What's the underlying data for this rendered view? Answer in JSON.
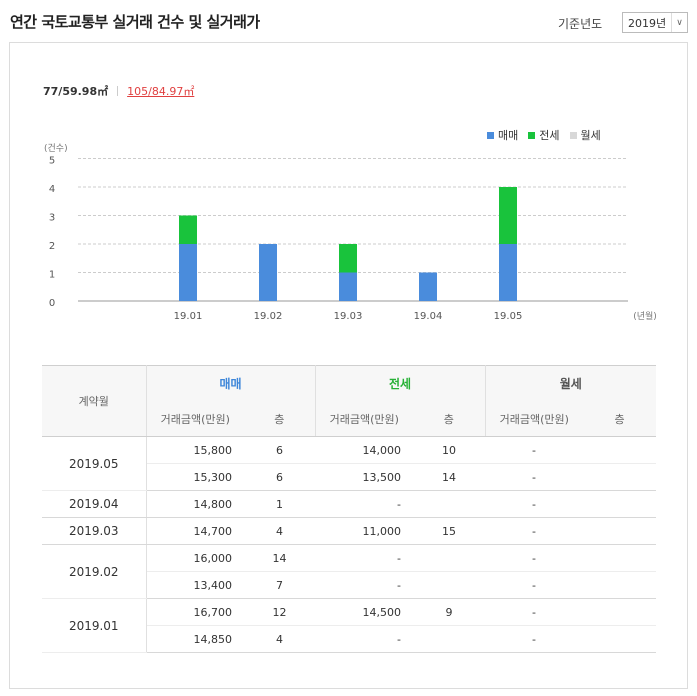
{
  "header": {
    "title": "연간 국토교통부 실거래 건수 및 실거래가",
    "year_label": "기준년도",
    "year_value": "2019년",
    "year_arrow": "∨"
  },
  "area_tabs": {
    "tab1": "77/59.98㎡",
    "tab2": "105/84.97㎡"
  },
  "legend": {
    "sale": "매매",
    "jeonse": "전세",
    "wolse": "월세"
  },
  "colors": {
    "sale": "#4a8cdc",
    "jeonse": "#19c33c",
    "wolse": "#d8d8d8",
    "grid": "#cccccc"
  },
  "chart_data": {
    "type": "bar",
    "stacked": true,
    "categories": [
      "19.01",
      "19.02",
      "19.03",
      "19.04",
      "19.05"
    ],
    "series": [
      {
        "name": "매매",
        "values": [
          2,
          2,
          1,
          1,
          2
        ]
      },
      {
        "name": "전세",
        "values": [
          1,
          0,
          1,
          0,
          2
        ]
      },
      {
        "name": "월세",
        "values": [
          0,
          0,
          0,
          0,
          0
        ]
      }
    ],
    "ylabel": "(건수)",
    "xlabel": "(년월)",
    "yticks": [
      "0",
      "1",
      "2",
      "3",
      "4",
      "5"
    ],
    "ylim": [
      0,
      5
    ],
    "grid": true,
    "legend_position": "top-right"
  },
  "table": {
    "month_header": "계약월",
    "groups": [
      "매매",
      "전세",
      "월세"
    ],
    "sub_price": "거래금액(만원)",
    "sub_floor": "층",
    "rows": [
      {
        "month": "2019.05",
        "sale_price": "15,800",
        "sale_floor": "6",
        "jeonse_price": "14,000",
        "jeonse_floor": "10",
        "wolse": "-"
      },
      {
        "month": "",
        "sale_price": "15,300",
        "sale_floor": "6",
        "jeonse_price": "13,500",
        "jeonse_floor": "14",
        "wolse": "-"
      },
      {
        "month": "2019.04",
        "sale_price": "14,800",
        "sale_floor": "1",
        "jeonse_price": "-",
        "jeonse_floor": "",
        "wolse": "-"
      },
      {
        "month": "2019.03",
        "sale_price": "14,700",
        "sale_floor": "4",
        "jeonse_price": "11,000",
        "jeonse_floor": "15",
        "wolse": "-"
      },
      {
        "month": "2019.02",
        "sale_price": "16,000",
        "sale_floor": "14",
        "jeonse_price": "-",
        "jeonse_floor": "",
        "wolse": "-"
      },
      {
        "month": "",
        "sale_price": "13,400",
        "sale_floor": "7",
        "jeonse_price": "-",
        "jeonse_floor": "",
        "wolse": "-"
      },
      {
        "month": "2019.01",
        "sale_price": "16,700",
        "sale_floor": "12",
        "jeonse_price": "14,500",
        "jeonse_floor": "9",
        "wolse": "-"
      },
      {
        "month": "",
        "sale_price": "14,850",
        "sale_floor": "4",
        "jeonse_price": "-",
        "jeonse_floor": "",
        "wolse": "-"
      }
    ]
  }
}
